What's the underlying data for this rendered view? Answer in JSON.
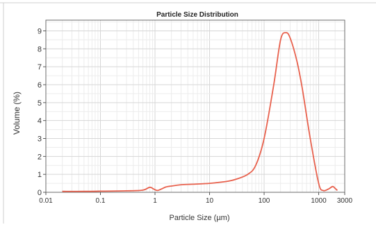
{
  "chart_data": {
    "type": "line",
    "title": "Particle Size Distribution",
    "xlabel": "Particle Size (µm)",
    "ylabel": "Volume (%)",
    "x_scale": "log",
    "xlim": [
      0.01,
      3000
    ],
    "ylim": [
      0,
      9.6
    ],
    "grid": true,
    "x_ticks": [
      0.01,
      0.1,
      1,
      10,
      100,
      1000,
      3000
    ],
    "x_tick_labels": [
      "0.01",
      "0.1",
      "1",
      "10",
      "100",
      "1000",
      "3000"
    ],
    "y_ticks": [
      0,
      1,
      2,
      3,
      4,
      5,
      6,
      7,
      8,
      9
    ],
    "y_tick_labels": [
      "0",
      "1",
      "2",
      "3",
      "4",
      "5",
      "6",
      "7",
      "8",
      "9"
    ],
    "series": [
      {
        "color": "#e8604c",
        "x": [
          0.02,
          0.05,
          0.1,
          0.3,
          0.6,
          0.8,
          0.95,
          1.1,
          1.3,
          1.6,
          2,
          3,
          5,
          10,
          20,
          30,
          50,
          70,
          100,
          150,
          200,
          250,
          300,
          400,
          500,
          700,
          1000,
          1200,
          1500,
          1800,
          2000,
          2200
        ],
        "y": [
          0.05,
          0.05,
          0.06,
          0.08,
          0.12,
          0.28,
          0.18,
          0.1,
          0.18,
          0.3,
          0.35,
          0.42,
          0.45,
          0.5,
          0.6,
          0.72,
          1.0,
          1.5,
          3.0,
          6.0,
          8.5,
          8.9,
          8.6,
          7.3,
          5.8,
          3.0,
          0.5,
          0.1,
          0.18,
          0.32,
          0.22,
          0.1
        ]
      }
    ]
  }
}
